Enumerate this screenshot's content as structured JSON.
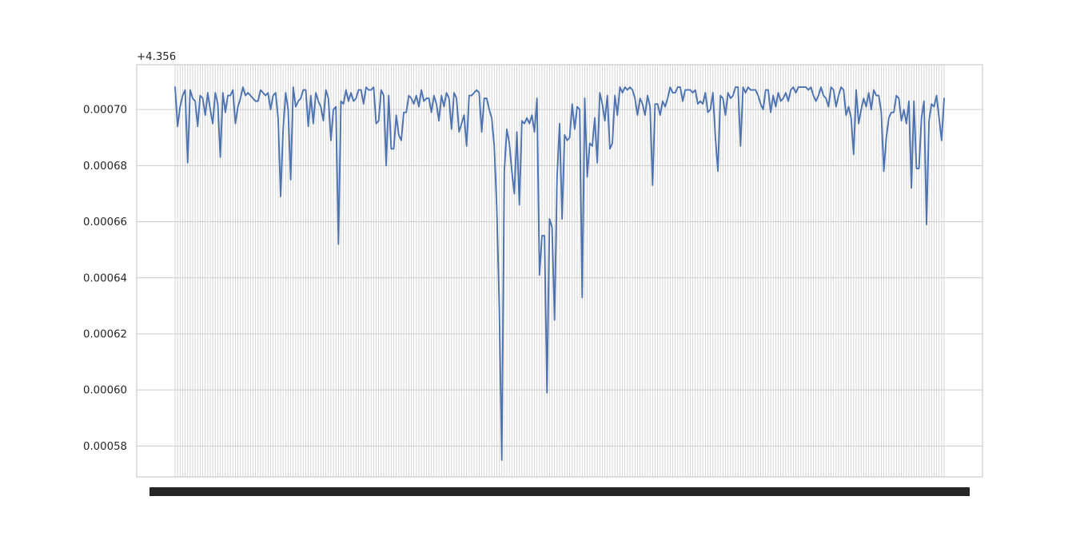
{
  "chart_data": {
    "type": "line",
    "title": "",
    "xlabel": "",
    "ylabel": "",
    "y_offset_label": "+4.356",
    "y_offset": 4.356,
    "ylim": [
      0.000569,
      0.000716
    ],
    "yticks": [
      0.00058,
      0.0006,
      0.00062,
      0.00064,
      0.00066,
      0.00068,
      0.0007
    ],
    "ytick_labels": [
      "0.00058",
      "0.00060",
      "0.00062",
      "0.00064",
      "0.00066",
      "0.00068",
      "0.00070"
    ],
    "grid": true,
    "legend": "none",
    "x_tick_labels_note": "labels unreadable (overlapping)",
    "colors": {
      "line": "#4c72b0",
      "grid": "#cccccc",
      "axes_edge": "#cccccc",
      "background": "#ffffff",
      "text": "#262626"
    },
    "series": [
      {
        "values": [
          0.000708,
          0.000694,
          0.000701,
          0.000705,
          0.000707,
          0.000681,
          0.000707,
          0.000704,
          0.000703,
          0.000694,
          0.000705,
          0.000704,
          0.000698,
          0.000706,
          0.0007,
          0.000695,
          0.000706,
          0.000702,
          0.000683,
          0.000706,
          0.000699,
          0.000705,
          0.000705,
          0.000707,
          0.000695,
          0.000701,
          0.000704,
          0.000708,
          0.000705,
          0.000706,
          0.000705,
          0.000704,
          0.000703,
          0.000703,
          0.000707,
          0.000706,
          0.000705,
          0.000706,
          0.0007,
          0.000705,
          0.000706,
          0.000697,
          0.000669,
          0.000693,
          0.000706,
          0.0007,
          0.000675,
          0.000708,
          0.000701,
          0.000703,
          0.000704,
          0.000707,
          0.000707,
          0.000694,
          0.000705,
          0.000695,
          0.000706,
          0.000703,
          0.000701,
          0.000696,
          0.000707,
          0.000704,
          0.000689,
          0.0007,
          0.000701,
          0.000652,
          0.000703,
          0.000702,
          0.000707,
          0.000703,
          0.000706,
          0.000703,
          0.000704,
          0.000707,
          0.000707,
          0.000702,
          0.000708,
          0.000707,
          0.000707,
          0.000708,
          0.000695,
          0.000696,
          0.000707,
          0.000705,
          0.00068,
          0.000705,
          0.000686,
          0.000686,
          0.000698,
          0.000691,
          0.000689,
          0.000699,
          0.000699,
          0.000705,
          0.000704,
          0.000702,
          0.000705,
          0.000701,
          0.000707,
          0.000703,
          0.000704,
          0.000704,
          0.000699,
          0.000705,
          0.000702,
          0.000696,
          0.000705,
          0.000701,
          0.000706,
          0.000704,
          0.000693,
          0.000706,
          0.000704,
          0.000692,
          0.000695,
          0.000698,
          0.000687,
          0.000705,
          0.000705,
          0.000706,
          0.000707,
          0.000706,
          0.000692,
          0.000704,
          0.000704,
          0.0007,
          0.000697,
          0.000687,
          0.000665,
          0.00063,
          0.000575,
          0.000678,
          0.000693,
          0.000688,
          0.000678,
          0.00067,
          0.000692,
          0.000666,
          0.000696,
          0.000695,
          0.000697,
          0.000695,
          0.000698,
          0.000692,
          0.000704,
          0.000641,
          0.000655,
          0.000655,
          0.000599,
          0.000661,
          0.000658,
          0.000625,
          0.000676,
          0.000695,
          0.000661,
          0.000691,
          0.000689,
          0.00069,
          0.000702,
          0.000693,
          0.000701,
          0.0007,
          0.000633,
          0.000704,
          0.000676,
          0.000688,
          0.000687,
          0.000697,
          0.000681,
          0.000706,
          0.000702,
          0.000696,
          0.000705,
          0.000686,
          0.000688,
          0.000705,
          0.000698,
          0.000708,
          0.000706,
          0.000708,
          0.000707,
          0.000708,
          0.000707,
          0.000704,
          0.000698,
          0.000704,
          0.000702,
          0.000698,
          0.000705,
          0.000701,
          0.000673,
          0.000702,
          0.000702,
          0.000698,
          0.000703,
          0.000701,
          0.000704,
          0.000708,
          0.000706,
          0.000706,
          0.000708,
          0.000708,
          0.000703,
          0.000707,
          0.000707,
          0.000707,
          0.000706,
          0.000707,
          0.000702,
          0.000703,
          0.000702,
          0.000706,
          0.000699,
          0.0007,
          0.000706,
          0.00069,
          0.000678,
          0.000705,
          0.000704,
          0.000698,
          0.000706,
          0.000704,
          0.000705,
          0.000708,
          0.000708,
          0.000687,
          0.000708,
          0.000706,
          0.000708,
          0.000707,
          0.000707,
          0.000707,
          0.000705,
          0.000702,
          0.0007,
          0.000707,
          0.000707,
          0.000699,
          0.000705,
          0.000701,
          0.000706,
          0.000703,
          0.000704,
          0.000706,
          0.000703,
          0.000707,
          0.000708,
          0.000706,
          0.000708,
          0.000708,
          0.000708,
          0.000708,
          0.000707,
          0.000708,
          0.000705,
          0.000703,
          0.000705,
          0.000708,
          0.000705,
          0.000704,
          0.000701,
          0.000708,
          0.000707,
          0.000701,
          0.000705,
          0.000708,
          0.000707,
          0.000698,
          0.000701,
          0.000697,
          0.000684,
          0.000707,
          0.000695,
          0.0007,
          0.000704,
          0.000701,
          0.000706,
          0.0007,
          0.000707,
          0.000705,
          0.000705,
          0.000699,
          0.000678,
          0.00069,
          0.000697,
          0.000699,
          0.000699,
          0.000705,
          0.000704,
          0.000696,
          0.0007,
          0.000695,
          0.000703,
          0.000672,
          0.000703,
          0.000679,
          0.000679,
          0.000697,
          0.000703,
          0.000659,
          0.000696,
          0.000702,
          0.000701,
          0.000705,
          0.000697,
          0.000689,
          0.000704
        ]
      }
    ]
  }
}
